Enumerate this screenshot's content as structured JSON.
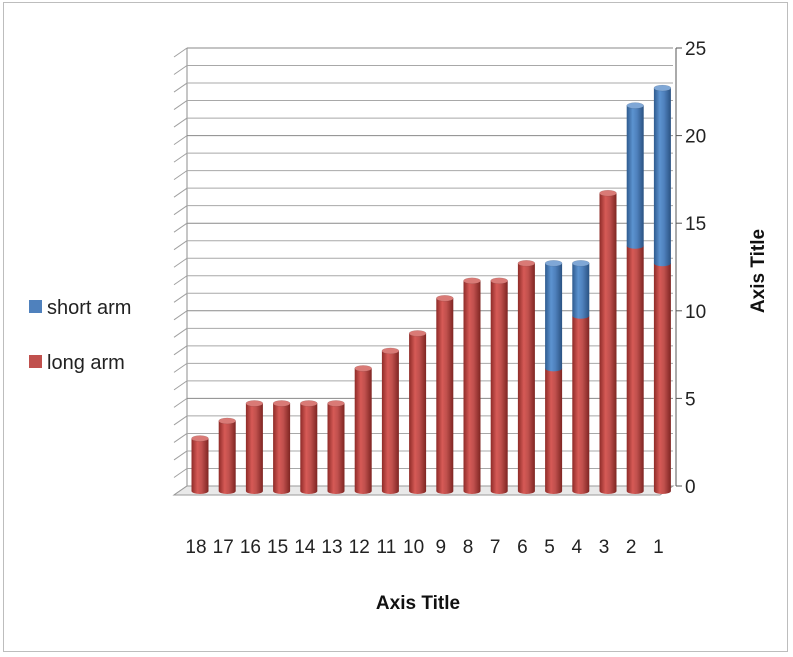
{
  "chart_data": {
    "type": "bar",
    "stacked": true,
    "view": "3d-cylinder",
    "categories": [
      "18",
      "17",
      "16",
      "15",
      "14",
      "13",
      "12",
      "11",
      "10",
      "9",
      "8",
      "7",
      "6",
      "5",
      "4",
      "3",
      "2",
      "1"
    ],
    "series": [
      {
        "name": "long arm",
        "color": "#C0504D",
        "values": [
          3,
          4,
          5,
          5,
          5,
          5,
          7,
          8,
          9,
          11,
          12,
          12,
          13,
          7,
          10,
          17,
          14,
          13
        ]
      },
      {
        "name": "short arm",
        "color": "#4F81BD",
        "values": [
          0,
          0,
          0,
          0,
          0,
          0,
          0,
          0,
          0,
          0,
          0,
          0,
          0,
          6,
          3,
          0,
          8,
          10
        ]
      }
    ],
    "xlabel": "Axis Title",
    "ylabel": "Axis Title",
    "ylim": [
      0,
      25
    ],
    "yticks": [
      "0",
      "5",
      "10",
      "15",
      "20",
      "25"
    ],
    "grid": true,
    "legend_position": "left"
  }
}
